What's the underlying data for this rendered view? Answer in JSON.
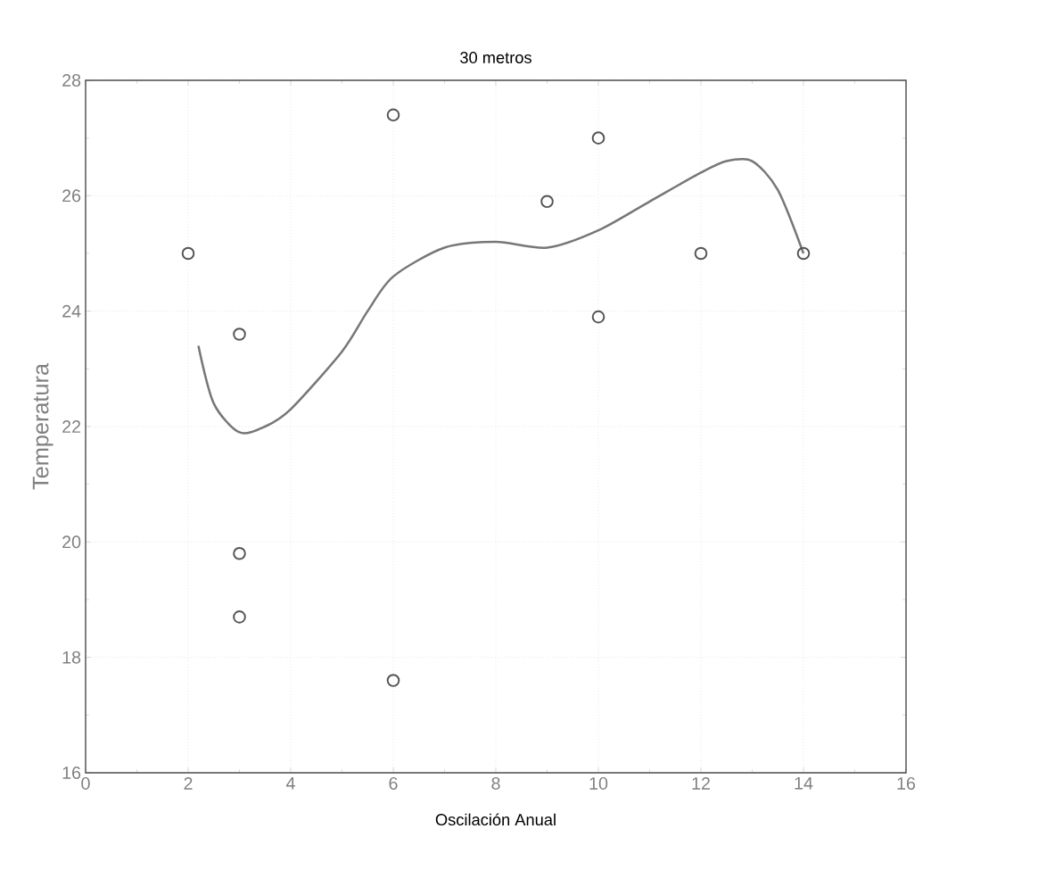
{
  "chart_data": {
    "type": "scatter",
    "title": "30 metros",
    "xlabel": "Oscilación Anual",
    "ylabel": "Temperatura",
    "xlim": [
      0,
      16
    ],
    "ylim": [
      16,
      28
    ],
    "xticks": [
      0,
      2,
      4,
      6,
      8,
      10,
      12,
      14,
      16
    ],
    "yticks": [
      16,
      18,
      20,
      22,
      24,
      26,
      28
    ],
    "grid": true,
    "marker": "circle",
    "series": [
      {
        "color": "#555555",
        "x": [
          2,
          3,
          3,
          3,
          6,
          6,
          9,
          10,
          10,
          12,
          14
        ],
        "values": [
          25.0,
          23.6,
          19.8,
          18.7,
          27.4,
          17.6,
          25.9,
          27.0,
          23.9,
          25.0,
          25.0
        ]
      },
      {
        "type": "line",
        "marker": "none",
        "color": "#777777",
        "x": [
          2.2,
          2.5,
          3,
          3.5,
          4,
          5,
          5.5,
          6,
          7,
          8,
          9,
          10,
          11,
          12,
          12.5,
          13,
          13.5,
          14
        ],
        "values": [
          23.4,
          22.4,
          21.9,
          22.0,
          22.3,
          23.3,
          24.0,
          24.6,
          25.1,
          25.2,
          25.1,
          25.4,
          25.9,
          26.4,
          26.6,
          26.6,
          26.1,
          25.0
        ]
      }
    ]
  }
}
